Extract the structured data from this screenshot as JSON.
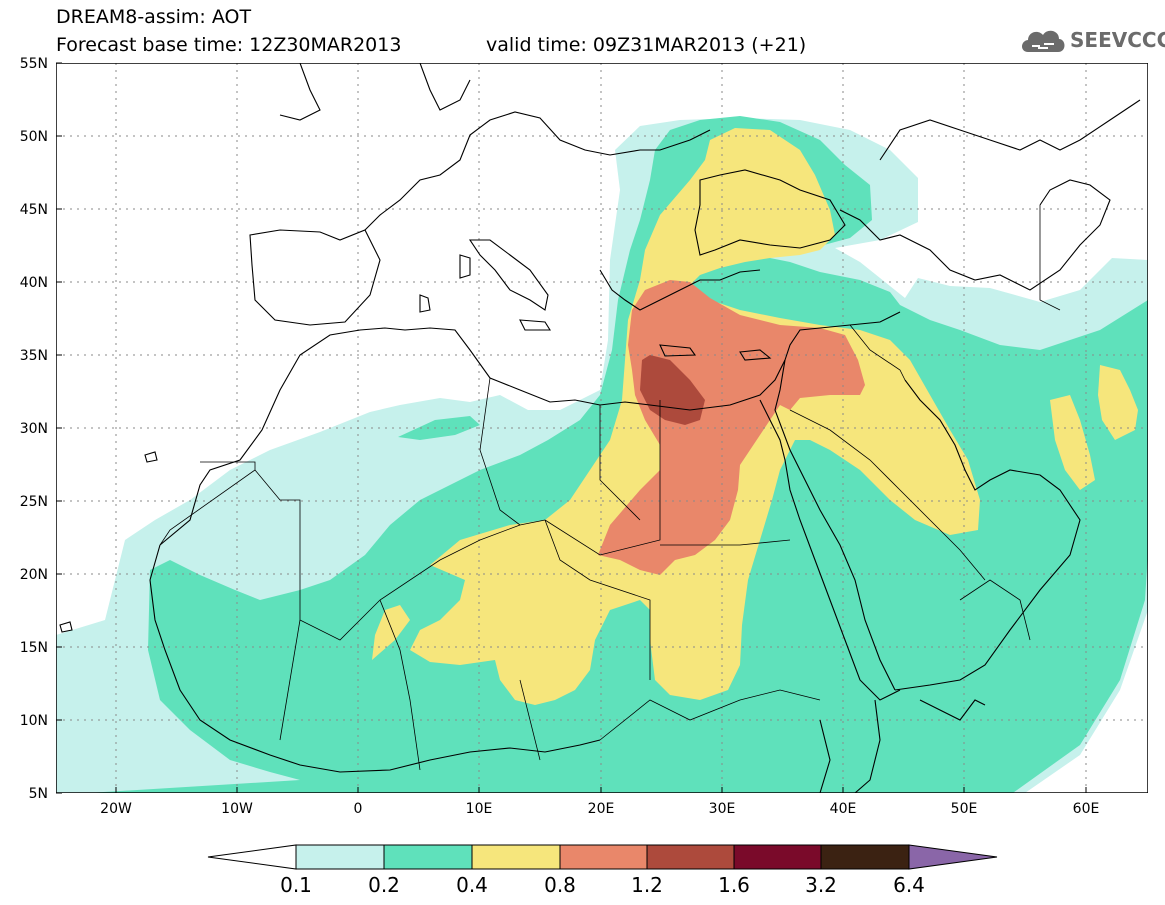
{
  "header": {
    "model": "DREAM8-assim: AOT",
    "base_time": "Forecast base time: 12Z30MAR2013",
    "valid_time": "valid time: 09Z31MAR2013 (+21)"
  },
  "logo": {
    "text": "SEEVCCC",
    "icon": "cloud-icon"
  },
  "map": {
    "lat_labels": [
      "55N",
      "50N",
      "45N",
      "40N",
      "35N",
      "30N",
      "25N",
      "20N",
      "15N",
      "10N",
      "5N"
    ],
    "lon_labels": [
      "20W",
      "10W",
      "0",
      "10E",
      "20E",
      "30E",
      "40E",
      "50E",
      "60E"
    ],
    "colors": {
      "c01": "#c6f1ec",
      "c02": "#5fe1bb",
      "c04": "#f6e67c",
      "c08": "#e9876a",
      "c12": "#ad4a3c",
      "c16": "#7a0a2a",
      "c32": "#3b2212",
      "c64": "#8a66a8",
      "land_line": "#000000"
    }
  },
  "colorbar": {
    "labels": [
      "0.1",
      "0.2",
      "0.4",
      "0.8",
      "1.2",
      "1.6",
      "3.2",
      "6.4"
    ],
    "bins": [
      {
        "color": "#c6f1ec"
      },
      {
        "color": "#5fe1bb"
      },
      {
        "color": "#f6e67c"
      },
      {
        "color": "#e9876a"
      },
      {
        "color": "#ad4a3c"
      },
      {
        "color": "#7a0a2a"
      },
      {
        "color": "#3b2212"
      }
    ],
    "low_end_color": "#ffffff",
    "high_end_color": "#8a66a8"
  }
}
